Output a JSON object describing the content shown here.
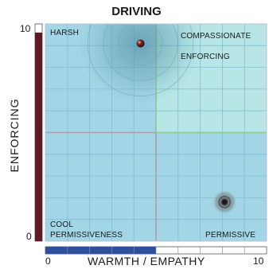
{
  "chart_data": {
    "type": "scatter",
    "title": "DRIVING",
    "xlabel": "WARMTH / EMPATHY",
    "ylabel": "ENFORCING",
    "xlim": [
      0,
      10
    ],
    "ylim": [
      0,
      10
    ],
    "x_ticks": [
      "0",
      "10"
    ],
    "y_ticks": [
      "0",
      "10"
    ],
    "x_scale_fill": 0.5,
    "y_scale_fill": 0.96,
    "grid": true,
    "quadrant_divider": {
      "x": 5,
      "y": 5
    },
    "quadrant_labels": {
      "top_left": "HARSH",
      "top_right_line1": "COMPASSIONATE",
      "top_right_line2": "ENFORCING",
      "bottom_left_line1": "COOL",
      "bottom_left_line2": "PERMISSIVENESS",
      "bottom_right": "PERMISSIVE"
    },
    "points": [
      {
        "x": 4.3,
        "y": 9.1,
        "spread": 2.8
      },
      {
        "x": 8.1,
        "y": 1.8,
        "spread": 0.55
      }
    ]
  },
  "colors": {
    "plot_background": "#a2d5e6",
    "grid_line": "#7fbfd6",
    "divider_line": "#b49aa6",
    "highlight_quadrant": "#c2ece6",
    "highlight_line": "#86d39a",
    "y_scale_bar": "#5e1a25",
    "x_scale_bar": "#2d4f9c"
  }
}
